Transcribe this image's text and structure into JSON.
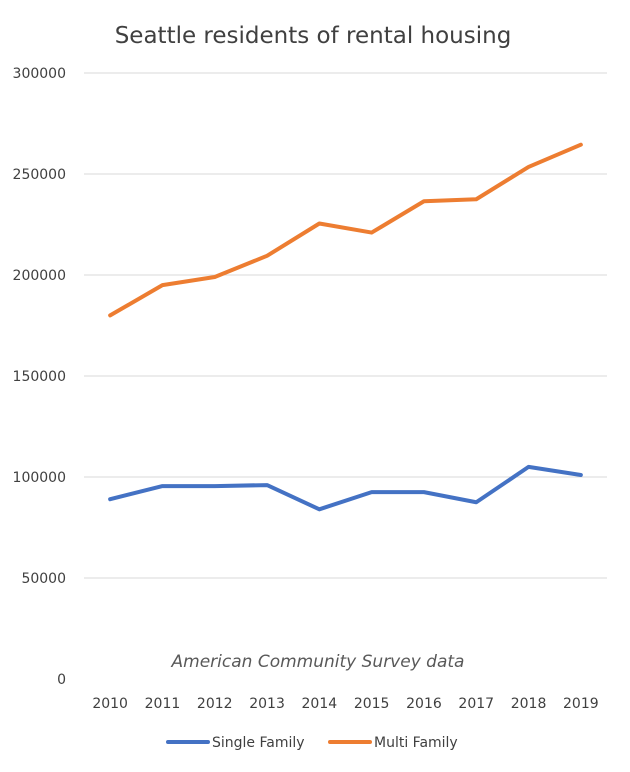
{
  "chart_data": {
    "type": "line",
    "title": "Seattle residents of rental housing",
    "annotation": "American Community Survey data",
    "xlabel": "",
    "ylabel": "",
    "categories": [
      "2010",
      "2011",
      "2012",
      "2013",
      "2014",
      "2015",
      "2016",
      "2017",
      "2018",
      "2019"
    ],
    "ylim": [
      0,
      300000
    ],
    "yticks": [
      "0",
      "50000",
      "100000",
      "150000",
      "200000",
      "250000",
      "300000"
    ],
    "grid": true,
    "legend_position": "bottom",
    "series": [
      {
        "name": "Single Family",
        "color": "#4472c4",
        "values": [
          89000,
          95500,
          95500,
          96000,
          84000,
          92500,
          92500,
          87500,
          105000,
          101000
        ]
      },
      {
        "name": "Multi Family",
        "color": "#ed7d31",
        "values": [
          180000,
          195000,
          199000,
          209500,
          225500,
          221000,
          236500,
          237500,
          253500,
          264500
        ]
      }
    ]
  }
}
